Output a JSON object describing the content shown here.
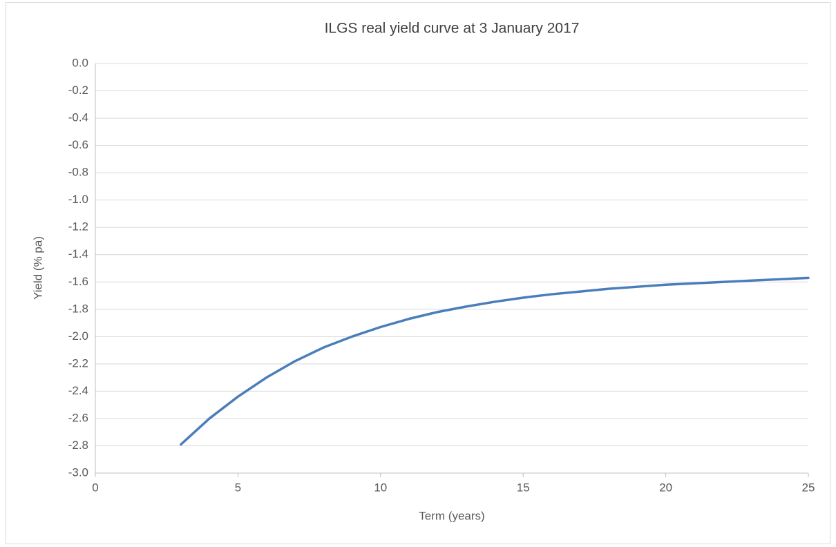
{
  "chart_data": {
    "type": "line",
    "title": "ILGS real yield curve at 3 January 2017",
    "xlabel": "Term (years)",
    "ylabel": "Yield (% pa)",
    "grid": true,
    "xlim": [
      0,
      25
    ],
    "xticks": [
      0,
      5,
      10,
      15,
      20,
      25
    ],
    "ylim": [
      -3,
      0
    ],
    "yticks": [
      {
        "value": 0,
        "label": "0.0"
      },
      -0.2,
      -0.4,
      -0.6,
      -0.8,
      {
        "value": -1,
        "label": "-1.0"
      },
      -1.2,
      -1.4,
      -1.6,
      -1.8,
      {
        "value": -2,
        "label": "-2.0"
      },
      -2.2,
      -2.4,
      -2.6,
      -2.8,
      {
        "value": -3,
        "label": "-3.0"
      }
    ],
    "series": [
      {
        "name": "Yield",
        "color": "#4a7ebb",
        "x": [
          3,
          4,
          5,
          6,
          7,
          8,
          9,
          10,
          11,
          12,
          13,
          14,
          15,
          16,
          17,
          18,
          19,
          20,
          21,
          22,
          23,
          24,
          25
        ],
        "values": [
          -2.79,
          -2.6,
          -2.44,
          -2.3,
          -2.18,
          -2.08,
          -2.0,
          -1.93,
          -1.87,
          -1.82,
          -1.78,
          -1.745,
          -1.715,
          -1.69,
          -1.67,
          -1.65,
          -1.635,
          -1.62,
          -1.61,
          -1.6,
          -1.59,
          -1.58,
          -1.57
        ]
      }
    ]
  }
}
